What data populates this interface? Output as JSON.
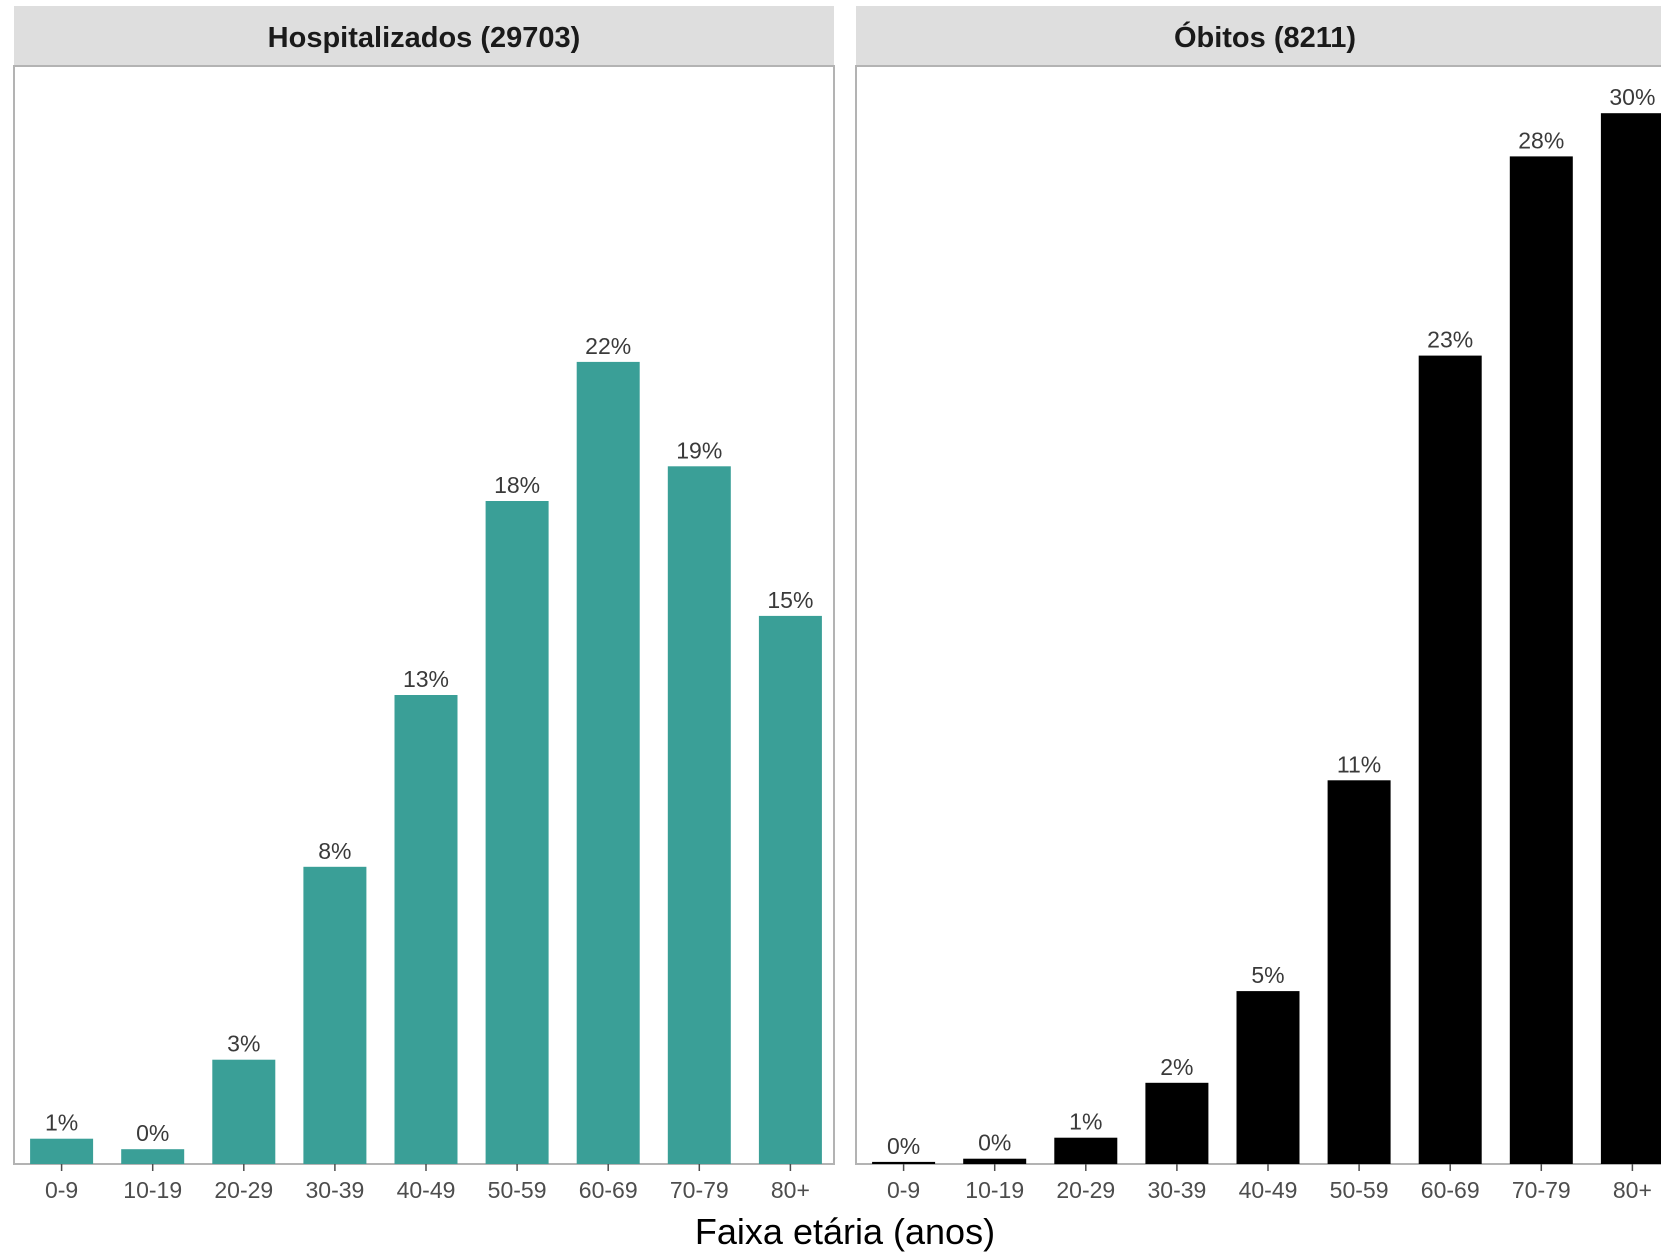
{
  "chart_data": {
    "type": "bar",
    "xlabel": "Faixa etária (anos)",
    "categories": [
      "0-9",
      "10-19",
      "20-29",
      "30-39",
      "40-49",
      "50-59",
      "60-69",
      "70-79",
      "80+"
    ],
    "panels": [
      {
        "title": "Hospitalizados (29703)",
        "color": "#3a9f97",
        "values": [
          2.4,
          1.4,
          9.9,
          28.2,
          44.5,
          62.9,
          76.1,
          66.2,
          52.0
        ],
        "labels": [
          "1%",
          "0%",
          "3%",
          "8%",
          "13%",
          "18%",
          "22%",
          "19%",
          "15%"
        ]
      },
      {
        "title": "Óbitos (8211)",
        "color": "#000000",
        "values": [
          0.2,
          0.5,
          2.5,
          7.7,
          16.4,
          36.4,
          76.7,
          95.6,
          99.7
        ],
        "labels": [
          "0%",
          "0%",
          "1%",
          "2%",
          "5%",
          "11%",
          "23%",
          "28%",
          "30%"
        ]
      }
    ],
    "ylim": [
      0,
      100
    ],
    "grid": false,
    "y_axis_shown": false,
    "legend": "none"
  }
}
